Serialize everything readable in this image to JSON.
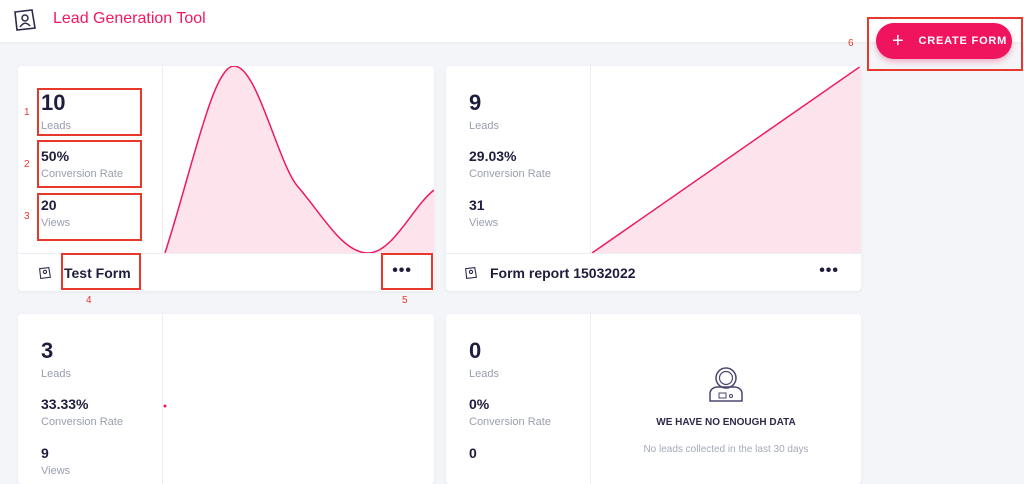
{
  "header": {
    "title": "Lead Generation Tool",
    "logo_icon": "form-person-icon",
    "create_label": "CREATE FORM",
    "accent": "#f0195f"
  },
  "cards": [
    {
      "leads": "10",
      "leads_label": "Leads",
      "conversion": "50%",
      "conversion_label": "Conversion Rate",
      "views": "20",
      "views_label": "Views",
      "name": "Test Form",
      "more": "•••"
    },
    {
      "leads": "9",
      "leads_label": "Leads",
      "conversion": "29.03%",
      "conversion_label": "Conversion Rate",
      "views": "31",
      "views_label": "Views",
      "name": "Form report 15032022",
      "more": "•••"
    },
    {
      "leads": "3",
      "leads_label": "Leads",
      "conversion": "33.33%",
      "conversion_label": "Conversion Rate",
      "views": "9",
      "views_label": "Views"
    },
    {
      "leads": "0",
      "leads_label": "Leads",
      "conversion": "0%",
      "conversion_label": "Conversion Rate",
      "views": "0",
      "nodata_title": "WE HAVE NO ENOUGH DATA",
      "nodata_text": "No leads collected in the last 30 days",
      "nodata_icon": "astronaut-icon"
    }
  ],
  "annotations": [
    "1",
    "2",
    "3",
    "4",
    "5",
    "6"
  ]
}
